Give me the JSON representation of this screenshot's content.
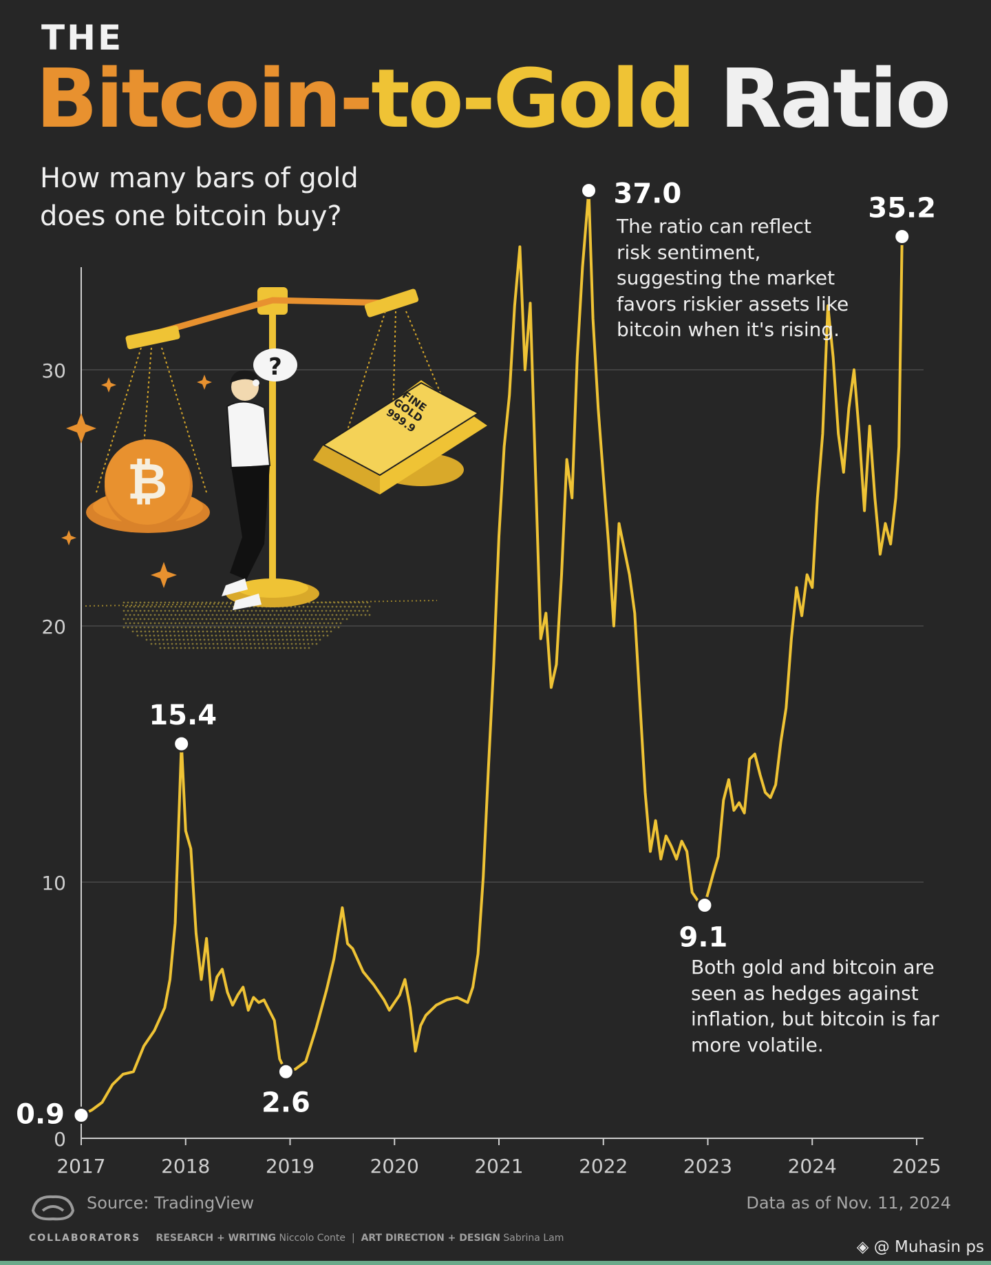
{
  "title": {
    "the": "THE",
    "word1_orange": "Bitcoin",
    "dash1": "-",
    "word2_yellow": "to-Gold",
    "word3_white": "Ratio"
  },
  "subtitle": "How many bars of gold does one bitcoin buy?",
  "annotations": {
    "peak_note": "The ratio can reflect risk sentiment, suggesting the market favors riskier assets like bitcoin when it's rising.",
    "low_note": "Both gold and bitcoin are seen as hedges against inflation, but bitcoin is far more volatile."
  },
  "illustration": {
    "gold_bar_text": [
      "FINE",
      "GOLD",
      "999.9"
    ],
    "thought_bubble": "?"
  },
  "footer": {
    "source": "Source: TradingView",
    "data_as_of": "Data as of Nov. 11, 2024",
    "collaborators_label": "COLLABORATORS",
    "research_label": "RESEARCH + WRITING",
    "research_name": "Niccolo Conte",
    "separator": "|",
    "design_label": "ART DIRECTION + DESIGN",
    "design_name": "Sabrina Lam",
    "watermark": "@ Muhasin ps"
  },
  "colors": {
    "background": "#262626",
    "line": "#efc335",
    "orange": "#e8912f",
    "grid": "#4a4a4a"
  },
  "chart_data": {
    "type": "line",
    "title": "The Bitcoin-to-Gold Ratio",
    "xlabel": "",
    "ylabel": "",
    "x_ticks": [
      "2017",
      "2018",
      "2019",
      "2020",
      "2021",
      "2022",
      "2023",
      "2024",
      "2025"
    ],
    "y_ticks": [
      0,
      10,
      20,
      30
    ],
    "ylim": [
      0,
      34
    ],
    "xlim": [
      2017.0,
      2025.0
    ],
    "grid": "horizontal",
    "highlighted_points": [
      {
        "x": 2017.0,
        "y": 0.9,
        "label": "0.9"
      },
      {
        "x": 2017.96,
        "y": 15.4,
        "label": "15.4"
      },
      {
        "x": 2018.96,
        "y": 2.6,
        "label": "2.6"
      },
      {
        "x": 2021.86,
        "y": 37.0,
        "label": "37.0"
      },
      {
        "x": 2022.97,
        "y": 9.1,
        "label": "9.1"
      },
      {
        "x": 2024.86,
        "y": 35.2,
        "label": "35.2"
      }
    ],
    "series": [
      {
        "values": [
          [
            2017.0,
            0.9
          ],
          [
            2017.1,
            1.1
          ],
          [
            2017.2,
            1.4
          ],
          [
            2017.3,
            2.1
          ],
          [
            2017.4,
            2.5
          ],
          [
            2017.5,
            2.6
          ],
          [
            2017.6,
            3.6
          ],
          [
            2017.7,
            4.2
          ],
          [
            2017.8,
            5.1
          ],
          [
            2017.85,
            6.2
          ],
          [
            2017.9,
            8.4
          ],
          [
            2017.96,
            15.4
          ],
          [
            2018.0,
            12.0
          ],
          [
            2018.05,
            11.3
          ],
          [
            2018.1,
            8.0
          ],
          [
            2018.15,
            6.2
          ],
          [
            2018.2,
            7.8
          ],
          [
            2018.25,
            5.4
          ],
          [
            2018.3,
            6.3
          ],
          [
            2018.35,
            6.6
          ],
          [
            2018.4,
            5.7
          ],
          [
            2018.45,
            5.2
          ],
          [
            2018.5,
            5.6
          ],
          [
            2018.55,
            5.9
          ],
          [
            2018.6,
            5.0
          ],
          [
            2018.65,
            5.5
          ],
          [
            2018.7,
            5.3
          ],
          [
            2018.75,
            5.4
          ],
          [
            2018.8,
            5.0
          ],
          [
            2018.85,
            4.6
          ],
          [
            2018.9,
            3.1
          ],
          [
            2018.96,
            2.6
          ],
          [
            2019.05,
            2.7
          ],
          [
            2019.15,
            3.0
          ],
          [
            2019.25,
            4.3
          ],
          [
            2019.35,
            5.8
          ],
          [
            2019.42,
            7.0
          ],
          [
            2019.5,
            9.0
          ],
          [
            2019.55,
            7.6
          ],
          [
            2019.6,
            7.4
          ],
          [
            2019.7,
            6.5
          ],
          [
            2019.8,
            6.0
          ],
          [
            2019.9,
            5.4
          ],
          [
            2019.95,
            5.0
          ],
          [
            2020.0,
            5.3
          ],
          [
            2020.05,
            5.6
          ],
          [
            2020.1,
            6.2
          ],
          [
            2020.15,
            5.1
          ],
          [
            2020.2,
            3.4
          ],
          [
            2020.25,
            4.4
          ],
          [
            2020.3,
            4.8
          ],
          [
            2020.4,
            5.2
          ],
          [
            2020.5,
            5.4
          ],
          [
            2020.6,
            5.5
          ],
          [
            2020.7,
            5.3
          ],
          [
            2020.75,
            5.9
          ],
          [
            2020.8,
            7.2
          ],
          [
            2020.85,
            10.2
          ],
          [
            2020.9,
            14.5
          ],
          [
            2020.95,
            18.5
          ],
          [
            2021.0,
            23.5
          ],
          [
            2021.05,
            27.0
          ],
          [
            2021.1,
            29.0
          ],
          [
            2021.15,
            32.5
          ],
          [
            2021.2,
            34.8
          ],
          [
            2021.25,
            30.0
          ],
          [
            2021.3,
            32.6
          ],
          [
            2021.35,
            26.0
          ],
          [
            2021.4,
            19.5
          ],
          [
            2021.45,
            20.5
          ],
          [
            2021.5,
            17.6
          ],
          [
            2021.55,
            18.5
          ],
          [
            2021.6,
            22.0
          ],
          [
            2021.65,
            26.5
          ],
          [
            2021.7,
            25.0
          ],
          [
            2021.75,
            30.5
          ],
          [
            2021.8,
            34.0
          ],
          [
            2021.86,
            37.0
          ],
          [
            2021.9,
            32.0
          ],
          [
            2021.95,
            28.5
          ],
          [
            2022.0,
            25.8
          ],
          [
            2022.05,
            23.2
          ],
          [
            2022.1,
            20.0
          ],
          [
            2022.15,
            24.0
          ],
          [
            2022.2,
            23.0
          ],
          [
            2022.25,
            22.0
          ],
          [
            2022.3,
            20.5
          ],
          [
            2022.35,
            17.0
          ],
          [
            2022.4,
            13.5
          ],
          [
            2022.45,
            11.2
          ],
          [
            2022.5,
            12.4
          ],
          [
            2022.55,
            10.9
          ],
          [
            2022.6,
            11.8
          ],
          [
            2022.65,
            11.4
          ],
          [
            2022.7,
            10.9
          ],
          [
            2022.75,
            11.6
          ],
          [
            2022.8,
            11.2
          ],
          [
            2022.85,
            9.6
          ],
          [
            2022.9,
            9.3
          ],
          [
            2022.97,
            9.1
          ],
          [
            2023.05,
            10.3
          ],
          [
            2023.1,
            11.0
          ],
          [
            2023.15,
            13.2
          ],
          [
            2023.2,
            14.0
          ],
          [
            2023.25,
            12.8
          ],
          [
            2023.3,
            13.1
          ],
          [
            2023.35,
            12.7
          ],
          [
            2023.4,
            14.8
          ],
          [
            2023.45,
            15.0
          ],
          [
            2023.5,
            14.2
          ],
          [
            2023.55,
            13.5
          ],
          [
            2023.6,
            13.3
          ],
          [
            2023.65,
            13.8
          ],
          [
            2023.7,
            15.5
          ],
          [
            2023.75,
            16.8
          ],
          [
            2023.8,
            19.5
          ],
          [
            2023.85,
            21.5
          ],
          [
            2023.9,
            20.4
          ],
          [
            2023.95,
            22.0
          ],
          [
            2024.0,
            21.5
          ],
          [
            2024.05,
            25.0
          ],
          [
            2024.1,
            27.5
          ],
          [
            2024.15,
            32.5
          ],
          [
            2024.2,
            30.5
          ],
          [
            2024.25,
            27.5
          ],
          [
            2024.3,
            26.0
          ],
          [
            2024.35,
            28.5
          ],
          [
            2024.4,
            30.0
          ],
          [
            2024.45,
            27.5
          ],
          [
            2024.5,
            24.5
          ],
          [
            2024.55,
            27.8
          ],
          [
            2024.6,
            25.0
          ],
          [
            2024.65,
            22.8
          ],
          [
            2024.7,
            24.0
          ],
          [
            2024.75,
            23.2
          ],
          [
            2024.8,
            25.0
          ],
          [
            2024.83,
            27.0
          ],
          [
            2024.86,
            35.2
          ]
        ]
      }
    ]
  }
}
